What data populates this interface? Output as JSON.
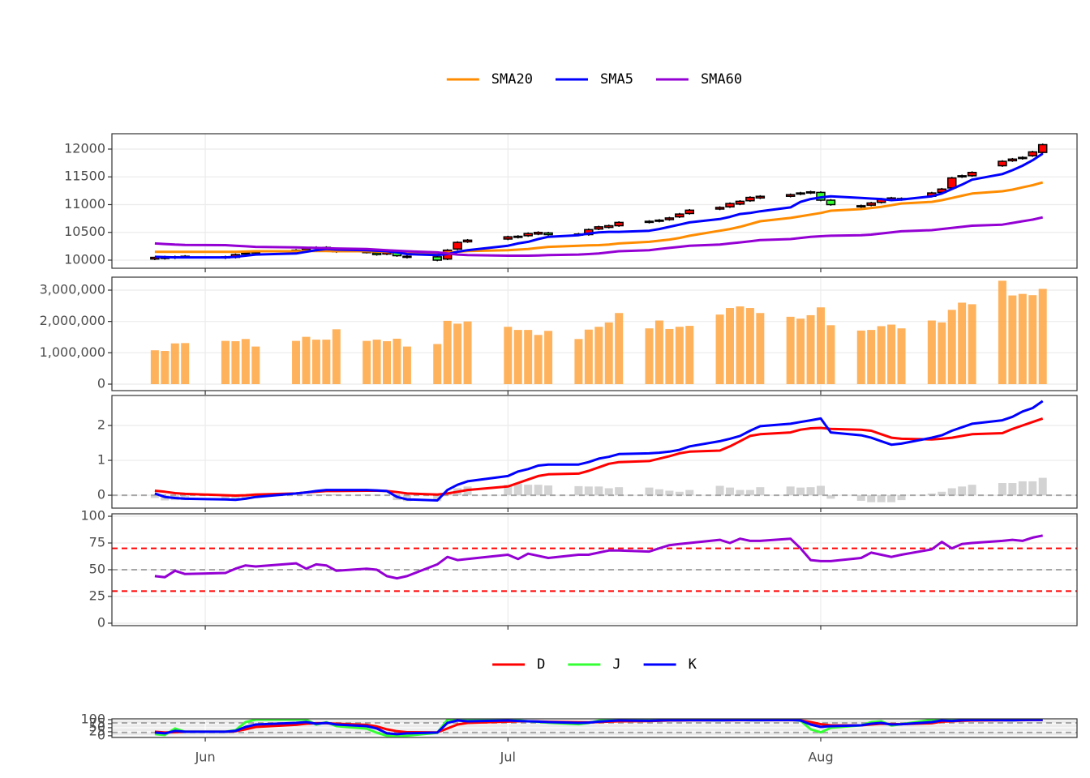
{
  "chart_data": [
    {
      "type": "candlestick",
      "x": [
        148,
        149,
        150,
        151,
        155,
        156,
        157,
        158,
        162,
        163,
        164,
        165,
        166,
        169,
        170,
        171,
        172,
        173,
        176,
        177,
        178,
        179,
        183,
        184,
        185,
        186,
        187,
        190,
        191,
        192,
        193,
        194,
        197,
        198,
        199,
        200,
        201,
        204,
        205,
        206,
        207,
        208,
        211,
        212,
        213,
        214,
        215,
        218,
        219,
        220,
        221,
        222,
        225,
        226,
        227,
        228,
        229,
        232,
        233,
        234,
        235,
        236
      ],
      "xlim": [
        143.75,
        239.4
      ],
      "xticks": [
        {
          "value": 153,
          "label": "Jun"
        },
        {
          "value": 183,
          "label": "Jul"
        },
        {
          "value": 214,
          "label": "Aug"
        }
      ],
      "open": [
        10020,
        10060,
        10040,
        10050,
        10060,
        10050,
        10110,
        10130,
        10160,
        10190,
        10220,
        10230,
        10190,
        10150,
        10130,
        10110,
        10140,
        10070,
        10060,
        10020,
        10200,
        10330,
        10380,
        10410,
        10440,
        10470,
        10490,
        10470,
        10460,
        10560,
        10590,
        10620,
        10680,
        10700,
        10730,
        10780,
        10840,
        10920,
        10960,
        11010,
        11070,
        11120,
        11150,
        11190,
        11210,
        11220,
        11080,
        10960,
        10990,
        11040,
        11090,
        11110,
        11150,
        11220,
        11300,
        11500,
        11520,
        11700,
        11790,
        11830,
        11880,
        11940
      ],
      "high": [
        10060,
        10080,
        10080,
        10090,
        10080,
        10120,
        10150,
        10170,
        10200,
        10240,
        10250,
        10250,
        10210,
        10170,
        10150,
        10170,
        10160,
        10090,
        10080,
        10200,
        10340,
        10380,
        10440,
        10450,
        10500,
        10520,
        10510,
        10490,
        10570,
        10620,
        10640,
        10700,
        10720,
        10740,
        10780,
        10850,
        10920,
        10970,
        11040,
        11080,
        11150,
        11170,
        11200,
        11230,
        11250,
        11240,
        11100,
        11000,
        11050,
        11120,
        11140,
        11130,
        11230,
        11300,
        11500,
        11540,
        11600,
        11800,
        11840,
        11870,
        11970,
        12100
      ],
      "low": [
        10000,
        10010,
        10020,
        10030,
        10020,
        10030,
        10090,
        10110,
        10140,
        10170,
        10200,
        10180,
        10130,
        10120,
        10080,
        10090,
        10060,
        10030,
        9980,
        10000,
        10180,
        10310,
        10360,
        10390,
        10420,
        10450,
        10440,
        10430,
        10440,
        10540,
        10570,
        10600,
        10660,
        10680,
        10710,
        10760,
        10820,
        10900,
        10940,
        10990,
        11050,
        11100,
        11130,
        11170,
        11190,
        11060,
        10980,
        10940,
        10970,
        11020,
        11070,
        11070,
        11130,
        11200,
        11280,
        11480,
        11500,
        11680,
        11770,
        11810,
        11860,
        11920
      ],
      "close": [
        10050,
        10030,
        10060,
        10070,
        10040,
        10100,
        10130,
        10150,
        10180,
        10220,
        10230,
        10200,
        10150,
        10140,
        10100,
        10150,
        10080,
        10050,
        10000,
        10180,
        10320,
        10360,
        10420,
        10430,
        10480,
        10500,
        10460,
        10450,
        10550,
        10600,
        10620,
        10680,
        10700,
        10720,
        10760,
        10830,
        10900,
        10950,
        11020,
        11060,
        11130,
        11150,
        11180,
        11210,
        11230,
        11080,
        11000,
        10980,
        11030,
        11100,
        11120,
        11090,
        11210,
        11280,
        11480,
        11520,
        11580,
        11780,
        11820,
        11850,
        11950,
        12080
      ],
      "up_color": "#ff0000",
      "down_color": "#33ff33",
      "series": [
        {
          "name": "SMA20",
          "color": "#ff8c00",
          "values": [
            10150,
            10150,
            10150,
            10150,
            10150,
            10150,
            10155,
            10160,
            10160,
            10165,
            10165,
            10165,
            10160,
            10160,
            10155,
            10150,
            10145,
            10140,
            10130,
            10135,
            10150,
            10165,
            10180,
            10190,
            10200,
            10220,
            10240,
            10260,
            10265,
            10270,
            10280,
            10300,
            10330,
            10350,
            10370,
            10400,
            10440,
            10530,
            10560,
            10600,
            10650,
            10700,
            10760,
            10790,
            10820,
            10850,
            10890,
            10920,
            10940,
            10960,
            10990,
            11020,
            11050,
            11080,
            11120,
            11160,
            11200,
            11240,
            11270,
            11310,
            11350,
            11400
          ]
        },
        {
          "name": "SMA5",
          "color": "#0000ff",
          "values": [
            10060,
            10055,
            10050,
            10050,
            10050,
            10060,
            10080,
            10100,
            10120,
            10150,
            10180,
            10200,
            10190,
            10180,
            10170,
            10160,
            10140,
            10110,
            10090,
            10110,
            10150,
            10180,
            10260,
            10300,
            10330,
            10380,
            10420,
            10450,
            10480,
            10500,
            10510,
            10510,
            10530,
            10560,
            10600,
            10640,
            10680,
            10740,
            10780,
            10830,
            10850,
            10880,
            10950,
            11050,
            11100,
            11130,
            11150,
            11120,
            11110,
            11100,
            11080,
            11090,
            11150,
            11200,
            11280,
            11360,
            11450,
            11550,
            11620,
            11700,
            11800,
            11920
          ]
        },
        {
          "name": "SMA60",
          "color": "#9400d3",
          "values": [
            10300,
            10290,
            10280,
            10275,
            10270,
            10260,
            10250,
            10240,
            10230,
            10225,
            10220,
            10215,
            10210,
            10200,
            10190,
            10180,
            10170,
            10160,
            10140,
            10120,
            10100,
            10090,
            10080,
            10080,
            10080,
            10085,
            10090,
            10100,
            10110,
            10120,
            10140,
            10160,
            10180,
            10200,
            10220,
            10240,
            10260,
            10280,
            10300,
            10320,
            10340,
            10360,
            10380,
            10400,
            10420,
            10430,
            10440,
            10450,
            10460,
            10480,
            10500,
            10520,
            10540,
            10560,
            10580,
            10600,
            10620,
            10640,
            10670,
            10700,
            10730,
            10770
          ]
        }
      ],
      "ylim": [
        9854,
        12277
      ],
      "yticks": [
        10000,
        10500,
        11000,
        11500,
        12000
      ],
      "grid": true,
      "legend": "top"
    },
    {
      "type": "bar",
      "color": "#ffa53f",
      "values": [
        1080000,
        1060000,
        1300000,
        1310000,
        1380000,
        1370000,
        1440000,
        1200000,
        1380000,
        1510000,
        1420000,
        1420000,
        1750000,
        1380000,
        1420000,
        1370000,
        1450000,
        1200000,
        1280000,
        2020000,
        1930000,
        2000000,
        1830000,
        1730000,
        1730000,
        1570000,
        1700000,
        1440000,
        1740000,
        1830000,
        1970000,
        2270000,
        1780000,
        2030000,
        1760000,
        1830000,
        1860000,
        2220000,
        2430000,
        2480000,
        2430000,
        2270000,
        2150000,
        2090000,
        2200000,
        2450000,
        1880000,
        1710000,
        1730000,
        1850000,
        1900000,
        1780000,
        2030000,
        1970000,
        2370000,
        2600000,
        2550000,
        3300000,
        2830000,
        2880000,
        2840000,
        3040000
      ],
      "ylim": [
        -207000,
        3414000
      ],
      "yticks": [
        0,
        {
          "value": 1000000,
          "label": "1,000,000"
        },
        {
          "value": 2000000,
          "label": "2,000,000"
        },
        {
          "value": 3000000,
          "label": "3,000,000"
        }
      ],
      "grid": true
    },
    {
      "type": "line",
      "series": [
        {
          "type": "bar",
          "color": "#d3d3d3",
          "values": [
            -0.08,
            -0.15,
            -0.14,
            -0.14,
            -0.12,
            -0.12,
            -0.1,
            -0.07,
            0.0,
            0.0,
            0.02,
            0.03,
            0.03,
            0.02,
            0.01,
            0.0,
            -0.14,
            -0.17,
            -0.17,
            0.1,
            0.2,
            0.25,
            0.3,
            0.33,
            0.3,
            0.3,
            0.28,
            0.26,
            0.25,
            0.25,
            0.2,
            0.23,
            0.22,
            0.17,
            0.13,
            0.1,
            0.15,
            0.27,
            0.22,
            0.15,
            0.15,
            0.23,
            0.25,
            0.22,
            0.23,
            0.27,
            -0.1,
            -0.16,
            -0.2,
            -0.2,
            -0.2,
            -0.14,
            0.05,
            0.1,
            0.2,
            0.25,
            0.3,
            0.35,
            0.35,
            0.4,
            0.4,
            0.5
          ]
        },
        {
          "color": "#ff0000",
          "values": [
            0.13,
            0.1,
            0.06,
            0.04,
            0.0,
            -0.01,
            0.0,
            0.02,
            0.05,
            0.08,
            0.1,
            0.12,
            0.12,
            0.13,
            0.13,
            0.12,
            0.09,
            0.05,
            0.02,
            0.05,
            0.1,
            0.15,
            0.25,
            0.35,
            0.45,
            0.55,
            0.6,
            0.62,
            0.7,
            0.8,
            0.9,
            0.95,
            0.98,
            1.05,
            1.12,
            1.2,
            1.25,
            1.28,
            1.4,
            1.55,
            1.7,
            1.75,
            1.8,
            1.88,
            1.92,
            1.93,
            1.9,
            1.88,
            1.85,
            1.75,
            1.65,
            1.62,
            1.6,
            1.62,
            1.65,
            1.7,
            1.75,
            1.78,
            1.9,
            2.0,
            2.1,
            2.2
          ]
        },
        {
          "color": "#0000ff",
          "values": [
            0.05,
            -0.05,
            -0.08,
            -0.1,
            -0.12,
            -0.13,
            -0.1,
            -0.05,
            0.05,
            0.08,
            0.12,
            0.15,
            0.15,
            0.15,
            0.14,
            0.12,
            -0.05,
            -0.12,
            -0.15,
            0.15,
            0.3,
            0.4,
            0.55,
            0.68,
            0.75,
            0.85,
            0.88,
            0.88,
            0.95,
            1.05,
            1.1,
            1.18,
            1.2,
            1.22,
            1.25,
            1.3,
            1.4,
            1.55,
            1.62,
            1.7,
            1.85,
            1.98,
            2.05,
            2.1,
            2.15,
            2.2,
            1.8,
            1.72,
            1.65,
            1.55,
            1.45,
            1.48,
            1.65,
            1.72,
            1.85,
            1.95,
            2.05,
            2.15,
            2.25,
            2.4,
            2.5,
            2.7
          ]
        }
      ],
      "hlines": [
        {
          "value": 0,
          "color": "#a6a6a6"
        }
      ],
      "ylim": [
        -0.37,
        2.86
      ],
      "yticks": [
        0,
        1,
        2
      ],
      "grid": true
    },
    {
      "type": "line",
      "series": [
        {
          "color": "#9400d3",
          "values": [
            44,
            43,
            49,
            46,
            47,
            51,
            54,
            53,
            56,
            51,
            55,
            54,
            49,
            51,
            50,
            44,
            42,
            44,
            55,
            62,
            59,
            60,
            64,
            60,
            65,
            63,
            61,
            64,
            64,
            66,
            68,
            68,
            67,
            70,
            73,
            74,
            75,
            78,
            75,
            79,
            77,
            77,
            79,
            70,
            59,
            58,
            58,
            61,
            66,
            64,
            62,
            64,
            69,
            76,
            70,
            74,
            75,
            77,
            78,
            77,
            80,
            82
          ]
        }
      ],
      "hlines": [
        {
          "value": 30,
          "color": "#ff0000"
        },
        {
          "value": 50,
          "color": "#a6a6a6"
        },
        {
          "value": 70,
          "color": "#ff0000"
        }
      ],
      "ylim": [
        -2.3,
        102.3
      ],
      "yticks": [
        0,
        25,
        50,
        75,
        100
      ],
      "grid": true
    },
    {
      "type": "line",
      "background": "#ebebeb",
      "series": [
        {
          "name": "D",
          "color": "#ff0000",
          "values": [
            25,
            20,
            22,
            25,
            25,
            28,
            40,
            55,
            68,
            75,
            78,
            78,
            75,
            68,
            58,
            40,
            28,
            22,
            21,
            45,
            70,
            80,
            88,
            90,
            90,
            89,
            87,
            84,
            83,
            85,
            88,
            90,
            91,
            93,
            95,
            95,
            96,
            96,
            96,
            97,
            97,
            97,
            97,
            96,
            85,
            72,
            65,
            65,
            70,
            75,
            73,
            72,
            78,
            88,
            90,
            93,
            95,
            96,
            96,
            97,
            98,
            98
          ]
        },
        {
          "name": "J",
          "color": "#33ff33",
          "values": [
            10,
            5,
            45,
            25,
            25,
            34,
            85,
            100,
            100,
            100,
            69,
            84,
            60,
            44,
            19,
            0,
            0,
            1,
            18,
            100,
            100,
            100,
            100,
            96,
            90,
            86,
            81,
            72,
            80,
            94,
            100,
            100,
            97,
            99,
            100,
            98,
            99,
            96,
            99,
            100,
            97,
            97,
            100,
            93,
            40,
            21,
            50,
            65,
            85,
            90,
            64,
            72,
            99,
            100,
            96,
            100,
            100,
            99,
            96,
            100,
            100,
            100
          ]
        },
        {
          "name": "K",
          "color": "#0000ff",
          "values": [
            20,
            15,
            30,
            25,
            25,
            30,
            55,
            70,
            80,
            85,
            75,
            80,
            70,
            60,
            45,
            15,
            10,
            15,
            20,
            80,
            95,
            90,
            95,
            92,
            90,
            88,
            85,
            80,
            82,
            88,
            92,
            95,
            93,
            95,
            97,
            96,
            97,
            96,
            97,
            98,
            97,
            97,
            98,
            95,
            70,
            55,
            60,
            65,
            75,
            80,
            70,
            72,
            85,
            95,
            92,
            96,
            98,
            97,
            96,
            98,
            99,
            99
          ]
        }
      ],
      "hlines": [
        {
          "value": 20,
          "color": "#a6a6a6"
        },
        {
          "value": 80,
          "color": "#a6a6a6"
        }
      ],
      "ylim": [
        -10.5,
        105
      ],
      "yticks": [
        0,
        25,
        50,
        75,
        100
      ],
      "grid": true,
      "legend": "top"
    }
  ]
}
